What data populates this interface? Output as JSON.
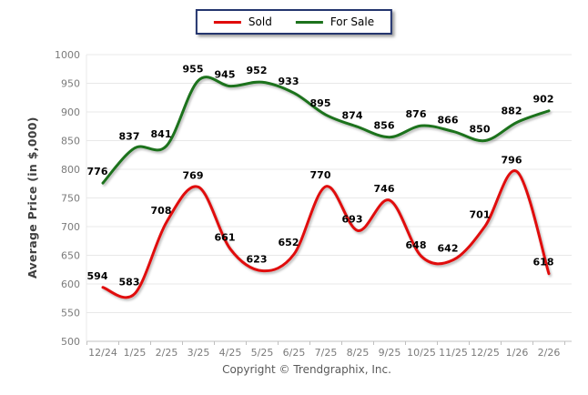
{
  "y_axis_title": "Average Price (in $,000)",
  "footer_text": "Copyright © Trendgraphix, Inc.",
  "legend": {
    "items": [
      {
        "label": "Sold",
        "color": "#e00b0b"
      },
      {
        "label": "For Sale",
        "color": "#1c721c"
      }
    ]
  },
  "chart_data": {
    "type": "line",
    "title": "",
    "xlabel": "",
    "ylabel": "Average Price (in $,000)",
    "categories": [
      "12/24",
      "1/25",
      "2/25",
      "3/25",
      "4/25",
      "5/25",
      "6/25",
      "7/25",
      "8/25",
      "9/25",
      "10/25",
      "11/25",
      "12/25",
      "1/26",
      "2/26"
    ],
    "series": [
      {
        "name": "Sold",
        "color": "#e00b0b",
        "values": [
          594,
          583,
          708,
          769,
          661,
          623,
          652,
          770,
          693,
          746,
          648,
          642,
          701,
          796,
          618
        ]
      },
      {
        "name": "For Sale",
        "color": "#1c721c",
        "values": [
          776,
          837,
          841,
          955,
          945,
          952,
          933,
          895,
          874,
          856,
          876,
          866,
          850,
          882,
          902
        ]
      }
    ],
    "ylim": [
      500,
      1000
    ],
    "y_tick_step": 50,
    "grid": true,
    "smooth": true,
    "legend_position": "top-center"
  },
  "colors": {
    "grid": "#e8e8e8",
    "axis": "#c0c0c0",
    "tick_label": "#7b7b7b",
    "data_label": "#000000",
    "legend_border": "#24356e"
  }
}
